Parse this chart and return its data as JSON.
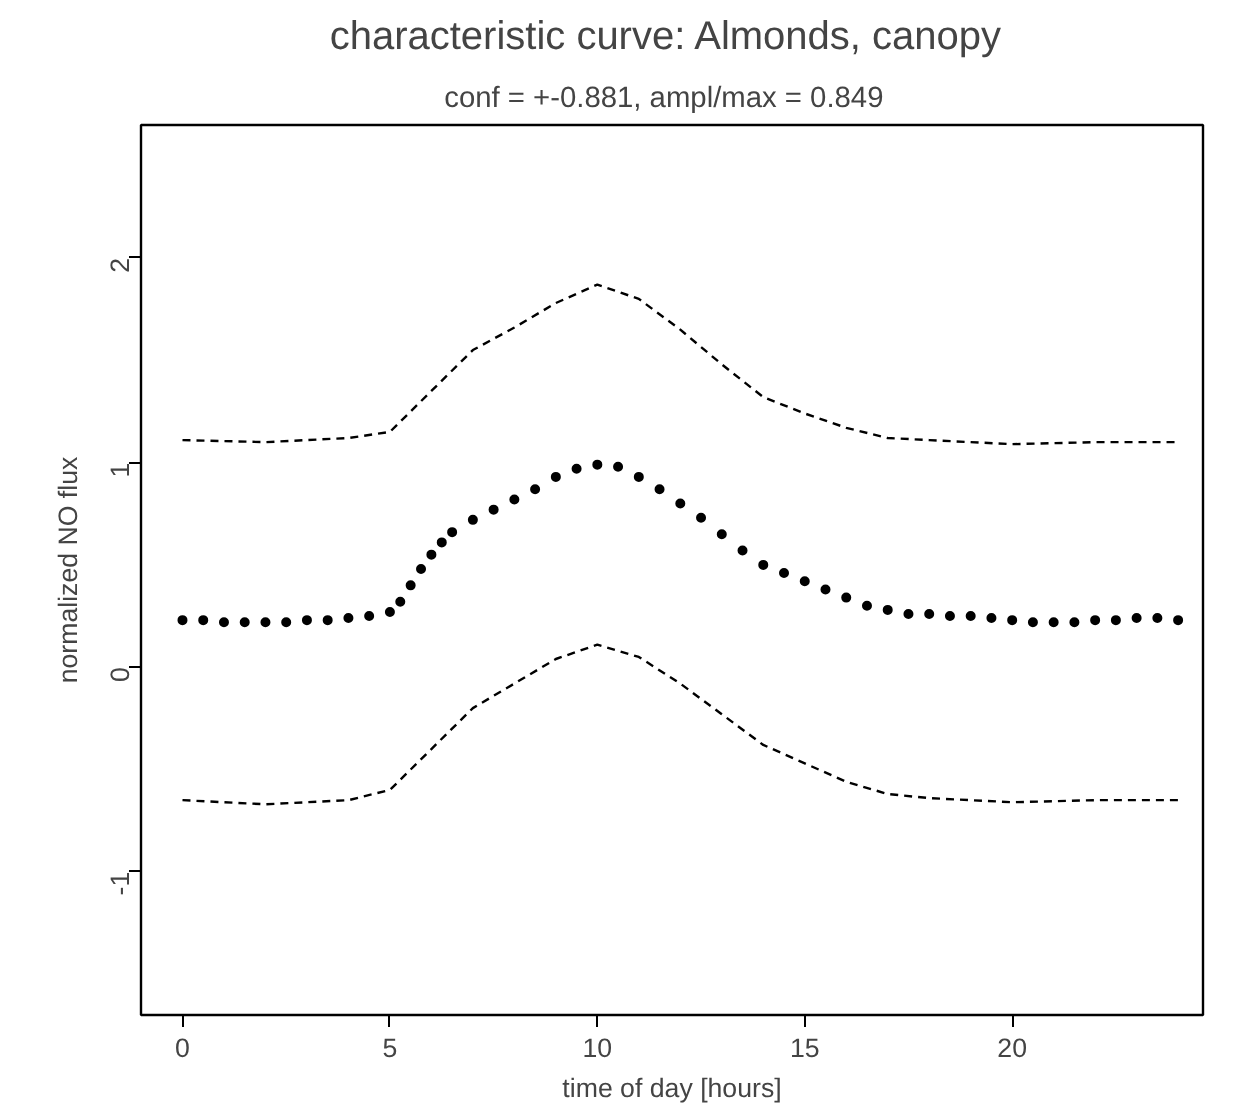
{
  "chart_data": {
    "type": "line",
    "title": "characteristic curve:  Almonds, canopy",
    "subtitle": "conf = +-0.881,   ampl/max = 0.849",
    "xlabel": "time of day [hours]",
    "ylabel": "normalized NO flux",
    "xlim": [
      -1,
      24.6
    ],
    "ylim": [
      -1.7,
      2.65
    ],
    "xticks": [
      0,
      5,
      10,
      15,
      20
    ],
    "yticks": [
      -1,
      0,
      1,
      2
    ],
    "series": [
      {
        "type": "scatter",
        "marker": "circle",
        "color": "#000000",
        "x": [
          0,
          0.5,
          1,
          1.5,
          2,
          2.5,
          3,
          3.5,
          4,
          4.5,
          5,
          5.25,
          5.5,
          5.75,
          6,
          6.25,
          6.5,
          7,
          7.5,
          8,
          8.5,
          9,
          9.5,
          10,
          10.5,
          11,
          11.5,
          12,
          12.5,
          13,
          13.5,
          14,
          14.5,
          15,
          15.5,
          16,
          16.5,
          17,
          17.5,
          18,
          18.5,
          19,
          19.5,
          20,
          20.5,
          21,
          21.5,
          22,
          22.5,
          23,
          23.5,
          24
        ],
        "values": [
          0.23,
          0.23,
          0.22,
          0.22,
          0.22,
          0.22,
          0.23,
          0.23,
          0.24,
          0.25,
          0.27,
          0.32,
          0.4,
          0.48,
          0.55,
          0.61,
          0.66,
          0.72,
          0.77,
          0.82,
          0.87,
          0.93,
          0.97,
          0.99,
          0.98,
          0.93,
          0.87,
          0.8,
          0.73,
          0.65,
          0.57,
          0.5,
          0.46,
          0.42,
          0.38,
          0.34,
          0.3,
          0.28,
          0.26,
          0.26,
          0.25,
          0.25,
          0.24,
          0.23,
          0.22,
          0.22,
          0.22,
          0.23,
          0.23,
          0.24,
          0.24,
          0.23
        ]
      },
      {
        "line_style": "dashed",
        "color": "#000000",
        "x": [
          0,
          2,
          4,
          5,
          6,
          7,
          8,
          9,
          10,
          11,
          12,
          13,
          14,
          15,
          16,
          17,
          18,
          20,
          22,
          24
        ],
        "values": [
          1.11,
          1.1,
          1.12,
          1.15,
          1.35,
          1.55,
          1.66,
          1.78,
          1.87,
          1.8,
          1.65,
          1.48,
          1.32,
          1.24,
          1.17,
          1.12,
          1.11,
          1.09,
          1.1,
          1.1
        ]
      },
      {
        "line_style": "dashed",
        "color": "#000000",
        "x": [
          0,
          2,
          4,
          5,
          6,
          7,
          8,
          9,
          10,
          11,
          12,
          13,
          14,
          15,
          16,
          17,
          18,
          20,
          22,
          24
        ],
        "values": [
          -0.65,
          -0.67,
          -0.65,
          -0.6,
          -0.4,
          -0.2,
          -0.08,
          0.04,
          0.11,
          0.05,
          -0.08,
          -0.23,
          -0.38,
          -0.47,
          -0.56,
          -0.62,
          -0.64,
          -0.66,
          -0.65,
          -0.65
        ]
      }
    ]
  }
}
